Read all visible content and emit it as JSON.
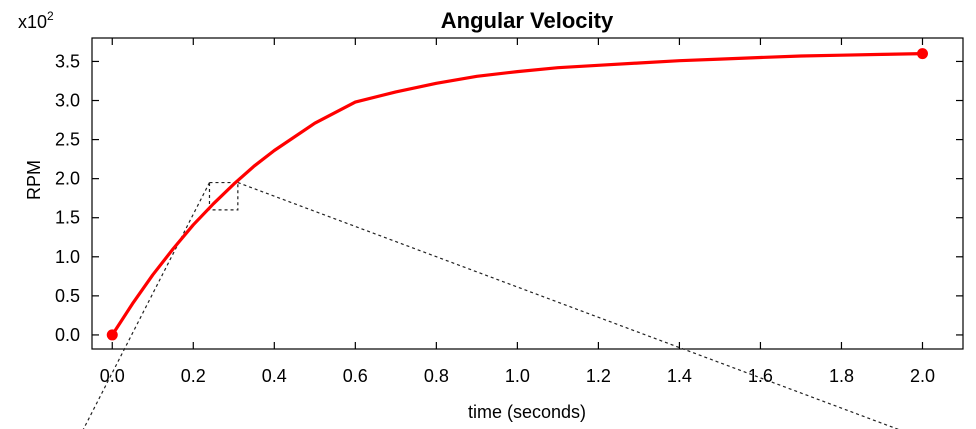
{
  "chart_data": {
    "type": "line",
    "title": "Angular Velocity",
    "xlabel": "time (seconds)",
    "ylabel": "RPM",
    "y_multiplier_label": "x10",
    "y_multiplier_exp": "2",
    "xlim": [
      -0.05,
      2.1
    ],
    "ylim": [
      -0.18,
      3.8
    ],
    "x_ticks": [
      "0.0",
      "0.2",
      "0.4",
      "0.6",
      "0.8",
      "1.0",
      "1.2",
      "1.4",
      "1.6",
      "1.8",
      "2.0"
    ],
    "y_ticks": [
      "0.0",
      "0.5",
      "1.0",
      "1.5",
      "2.0",
      "2.5",
      "3.0",
      "3.5"
    ],
    "grid": false,
    "series": [
      {
        "color": "#ff0000",
        "x": [
          0.0,
          0.05,
          0.1,
          0.15,
          0.2,
          0.25,
          0.3,
          0.35,
          0.4,
          0.5,
          0.6,
          0.7,
          0.8,
          0.9,
          1.0,
          1.1,
          1.2,
          1.3,
          1.4,
          1.5,
          1.6,
          1.7,
          1.8,
          1.9,
          2.0
        ],
        "y": [
          0.0,
          0.4,
          0.77,
          1.1,
          1.41,
          1.68,
          1.93,
          2.16,
          2.36,
          2.71,
          2.98,
          3.11,
          3.22,
          3.31,
          3.37,
          3.42,
          3.45,
          3.48,
          3.51,
          3.53,
          3.55,
          3.57,
          3.58,
          3.59,
          3.6
        ]
      }
    ],
    "endpoints": [
      {
        "x": 0.0,
        "y": 0.0
      },
      {
        "x": 2.0,
        "y": 3.6
      }
    ],
    "zoom_box": {
      "x0": 0.24,
      "x1": 0.31,
      "y0": 1.6,
      "y1": 1.95
    }
  }
}
